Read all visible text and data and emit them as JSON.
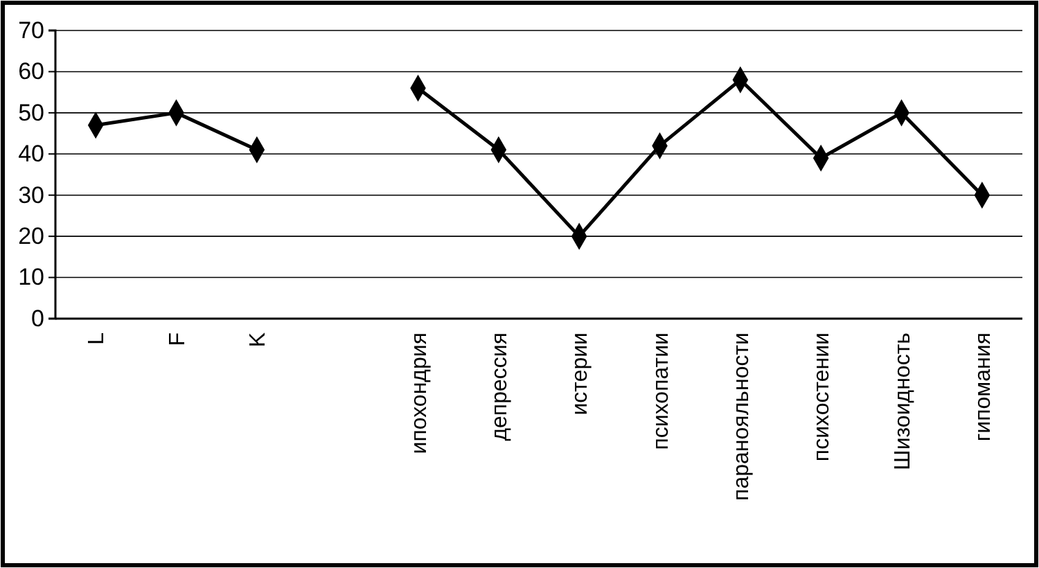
{
  "chart_data": {
    "type": "line",
    "categories": [
      "L",
      "F",
      "K",
      null,
      "ипохондрия",
      "депрессия",
      "истерии",
      "психопатии",
      "паранояльности",
      "психостении",
      "Шизоидность",
      "гипомания"
    ],
    "series": [
      {
        "color": "#000000",
        "values": [
          47,
          50,
          41,
          null,
          56,
          41,
          20,
          42,
          58,
          39,
          50,
          30
        ]
      }
    ],
    "ylim": [
      0,
      70
    ],
    "yticks": [
      0,
      10,
      20,
      30,
      40,
      50,
      60,
      70
    ],
    "grid": "y",
    "marker": "diamond",
    "line_style": "solid"
  }
}
